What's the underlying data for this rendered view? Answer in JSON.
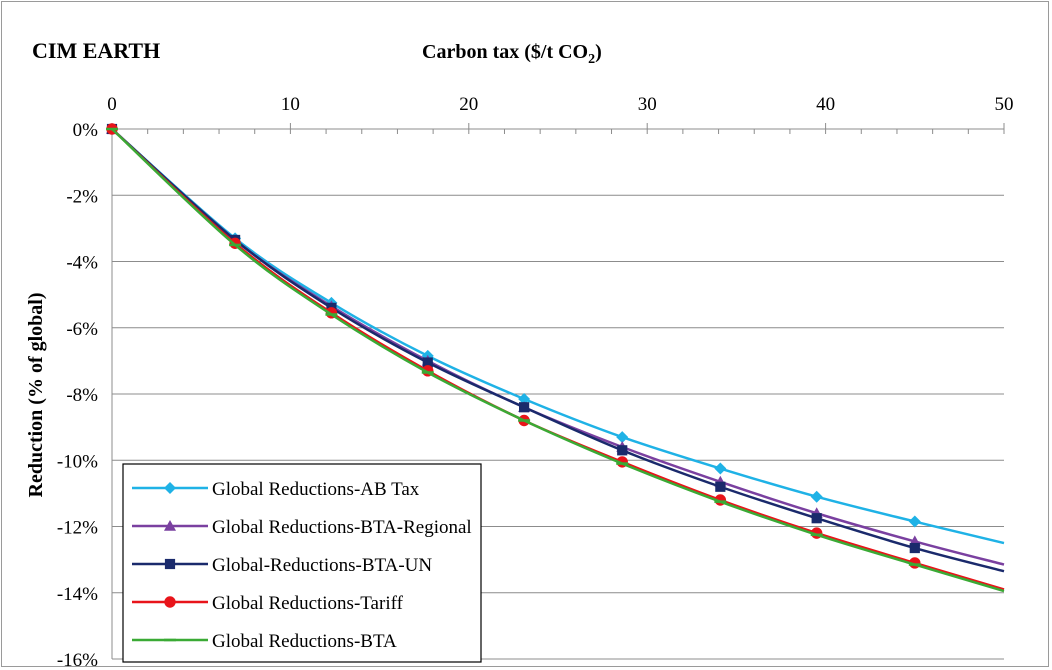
{
  "chart_data": {
    "type": "line",
    "title": "CIM EARTH",
    "xlabel_main": "Carbon tax ($/t CO",
    "xlabel_sub": "2",
    "xlabel_end": ")",
    "ylabel": "Reduction (% of global)",
    "xlim": [
      0,
      50
    ],
    "ylim": [
      -16,
      0
    ],
    "x_ticks": [
      "0",
      "10",
      "20",
      "30",
      "40",
      "50"
    ],
    "y_ticks": [
      "0%",
      "-2%",
      "-4%",
      "-6%",
      "-8%",
      "-10%",
      "-12%",
      "-14%",
      "-16%"
    ],
    "x_tick_values": [
      0,
      10,
      20,
      30,
      40,
      50
    ],
    "y_tick_values": [
      0,
      -2,
      -4,
      -6,
      -8,
      -10,
      -12,
      -14,
      -16
    ],
    "x_axis_position": "top",
    "grid": "horizontal",
    "legend_position": "bottom-left",
    "x": [
      0,
      6.9,
      12.3,
      17.7,
      23.1,
      28.6,
      34.1,
      39.5,
      45,
      50
    ],
    "series": [
      {
        "name": "Global Reductions-AB Tax",
        "color": "#1fb2e6",
        "marker": "diamond",
        "values": [
          0,
          -3.3,
          -5.25,
          -6.85,
          -8.15,
          -9.3,
          -10.25,
          -11.1,
          -11.85,
          -12.5
        ]
      },
      {
        "name": "Global Reductions-BTA-Regional",
        "color": "#7a40a0",
        "marker": "triangle",
        "values": [
          0,
          -3.35,
          -5.35,
          -7.0,
          -8.4,
          -9.6,
          -10.65,
          -11.6,
          -12.45,
          -13.15
        ]
      },
      {
        "name": "Global-Reductions-BTA-UN",
        "color": "#1a2a6c",
        "marker": "square",
        "values": [
          0,
          -3.35,
          -5.4,
          -7.05,
          -8.4,
          -9.7,
          -10.8,
          -11.75,
          -12.65,
          -13.35
        ]
      },
      {
        "name": "Global Reductions-Tariff",
        "color": "#e8141a",
        "marker": "circle",
        "values": [
          0,
          -3.45,
          -5.55,
          -7.3,
          -8.8,
          -10.05,
          -11.2,
          -12.2,
          -13.1,
          -13.9
        ]
      },
      {
        "name": "Global Reductions-BTA",
        "color": "#3aaa35",
        "marker": "dash",
        "values": [
          0,
          -3.5,
          -5.6,
          -7.35,
          -8.8,
          -10.1,
          -11.25,
          -12.25,
          -13.15,
          -13.95
        ]
      }
    ]
  }
}
